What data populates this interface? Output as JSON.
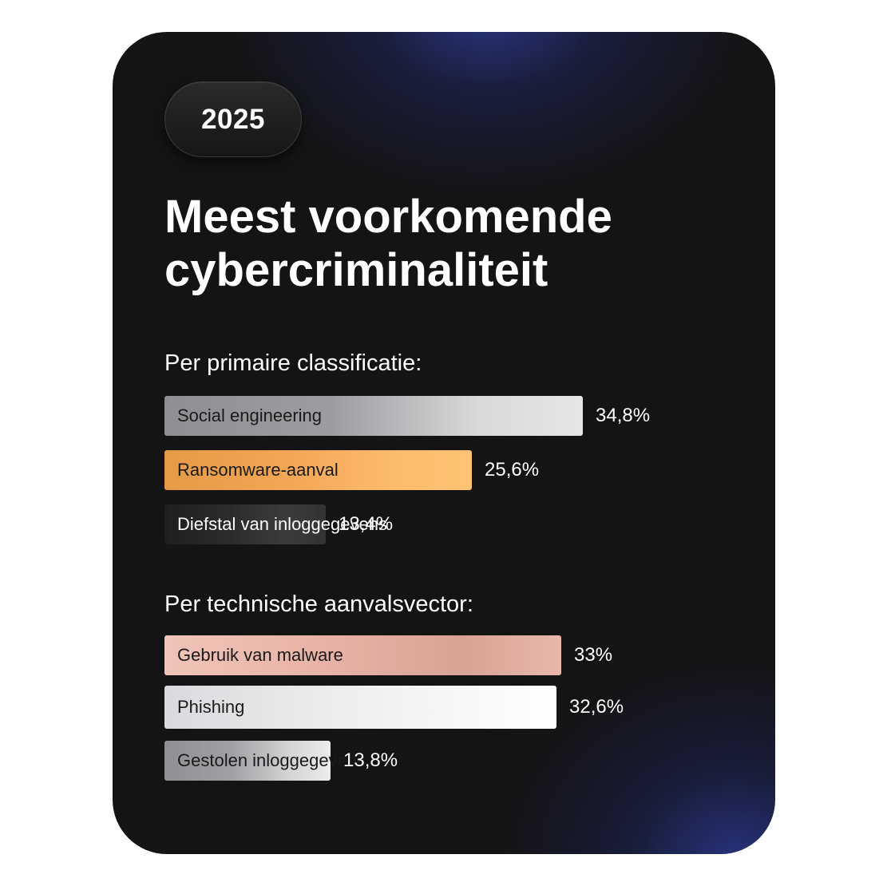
{
  "year": "2025",
  "title_line1": "Meest voorkomende",
  "title_line2": "cybercriminaliteit",
  "chart_data": [
    {
      "type": "bar",
      "orientation": "horizontal",
      "title": "Per primaire classificatie:",
      "categories": [
        "Social engineering",
        "Ransomware-aanval",
        "Diefstal van inloggegevens"
      ],
      "values": [
        34.8,
        25.6,
        13.4
      ],
      "value_labels": [
        "34,8%",
        "25,6%",
        "13,4%"
      ],
      "unit": "%",
      "colors": [
        [
          "#8e8f92",
          "#9c9da0",
          "#d8d9db",
          "#e6e6e8"
        ],
        [
          "#e59a45",
          "#f3a655",
          "#fdbb6d",
          "#ffc374"
        ],
        [
          "#1e1e1e",
          "#2c2c2c",
          "#3b3b3b",
          "#333333"
        ]
      ],
      "text_colors": [
        "#1a1a1a",
        "#1a1a1a",
        "#ffffff"
      ]
    },
    {
      "type": "bar",
      "orientation": "horizontal",
      "title": "Per technische aanvalsvector:",
      "categories": [
        "Gebruik van malware",
        "Phishing",
        "Gestolen inloggegevens"
      ],
      "values": [
        33,
        32.6,
        13.8
      ],
      "value_labels": [
        "33%",
        "32,6%",
        "13,8%"
      ],
      "unit": "%",
      "colors": [
        [
          "#f0c4b8",
          "#e8b3a6",
          "#d8a294",
          "#e9b8ab"
        ],
        [
          "#d9dadd",
          "#ececee",
          "#f7f7f8",
          "#ffffff"
        ],
        [
          "#8f9094",
          "#9fa0a3",
          "#d3d4d6",
          "#ececed"
        ]
      ],
      "text_colors": [
        "#1a1a1a",
        "#1a1a1a",
        "#1a1a1a"
      ]
    }
  ]
}
